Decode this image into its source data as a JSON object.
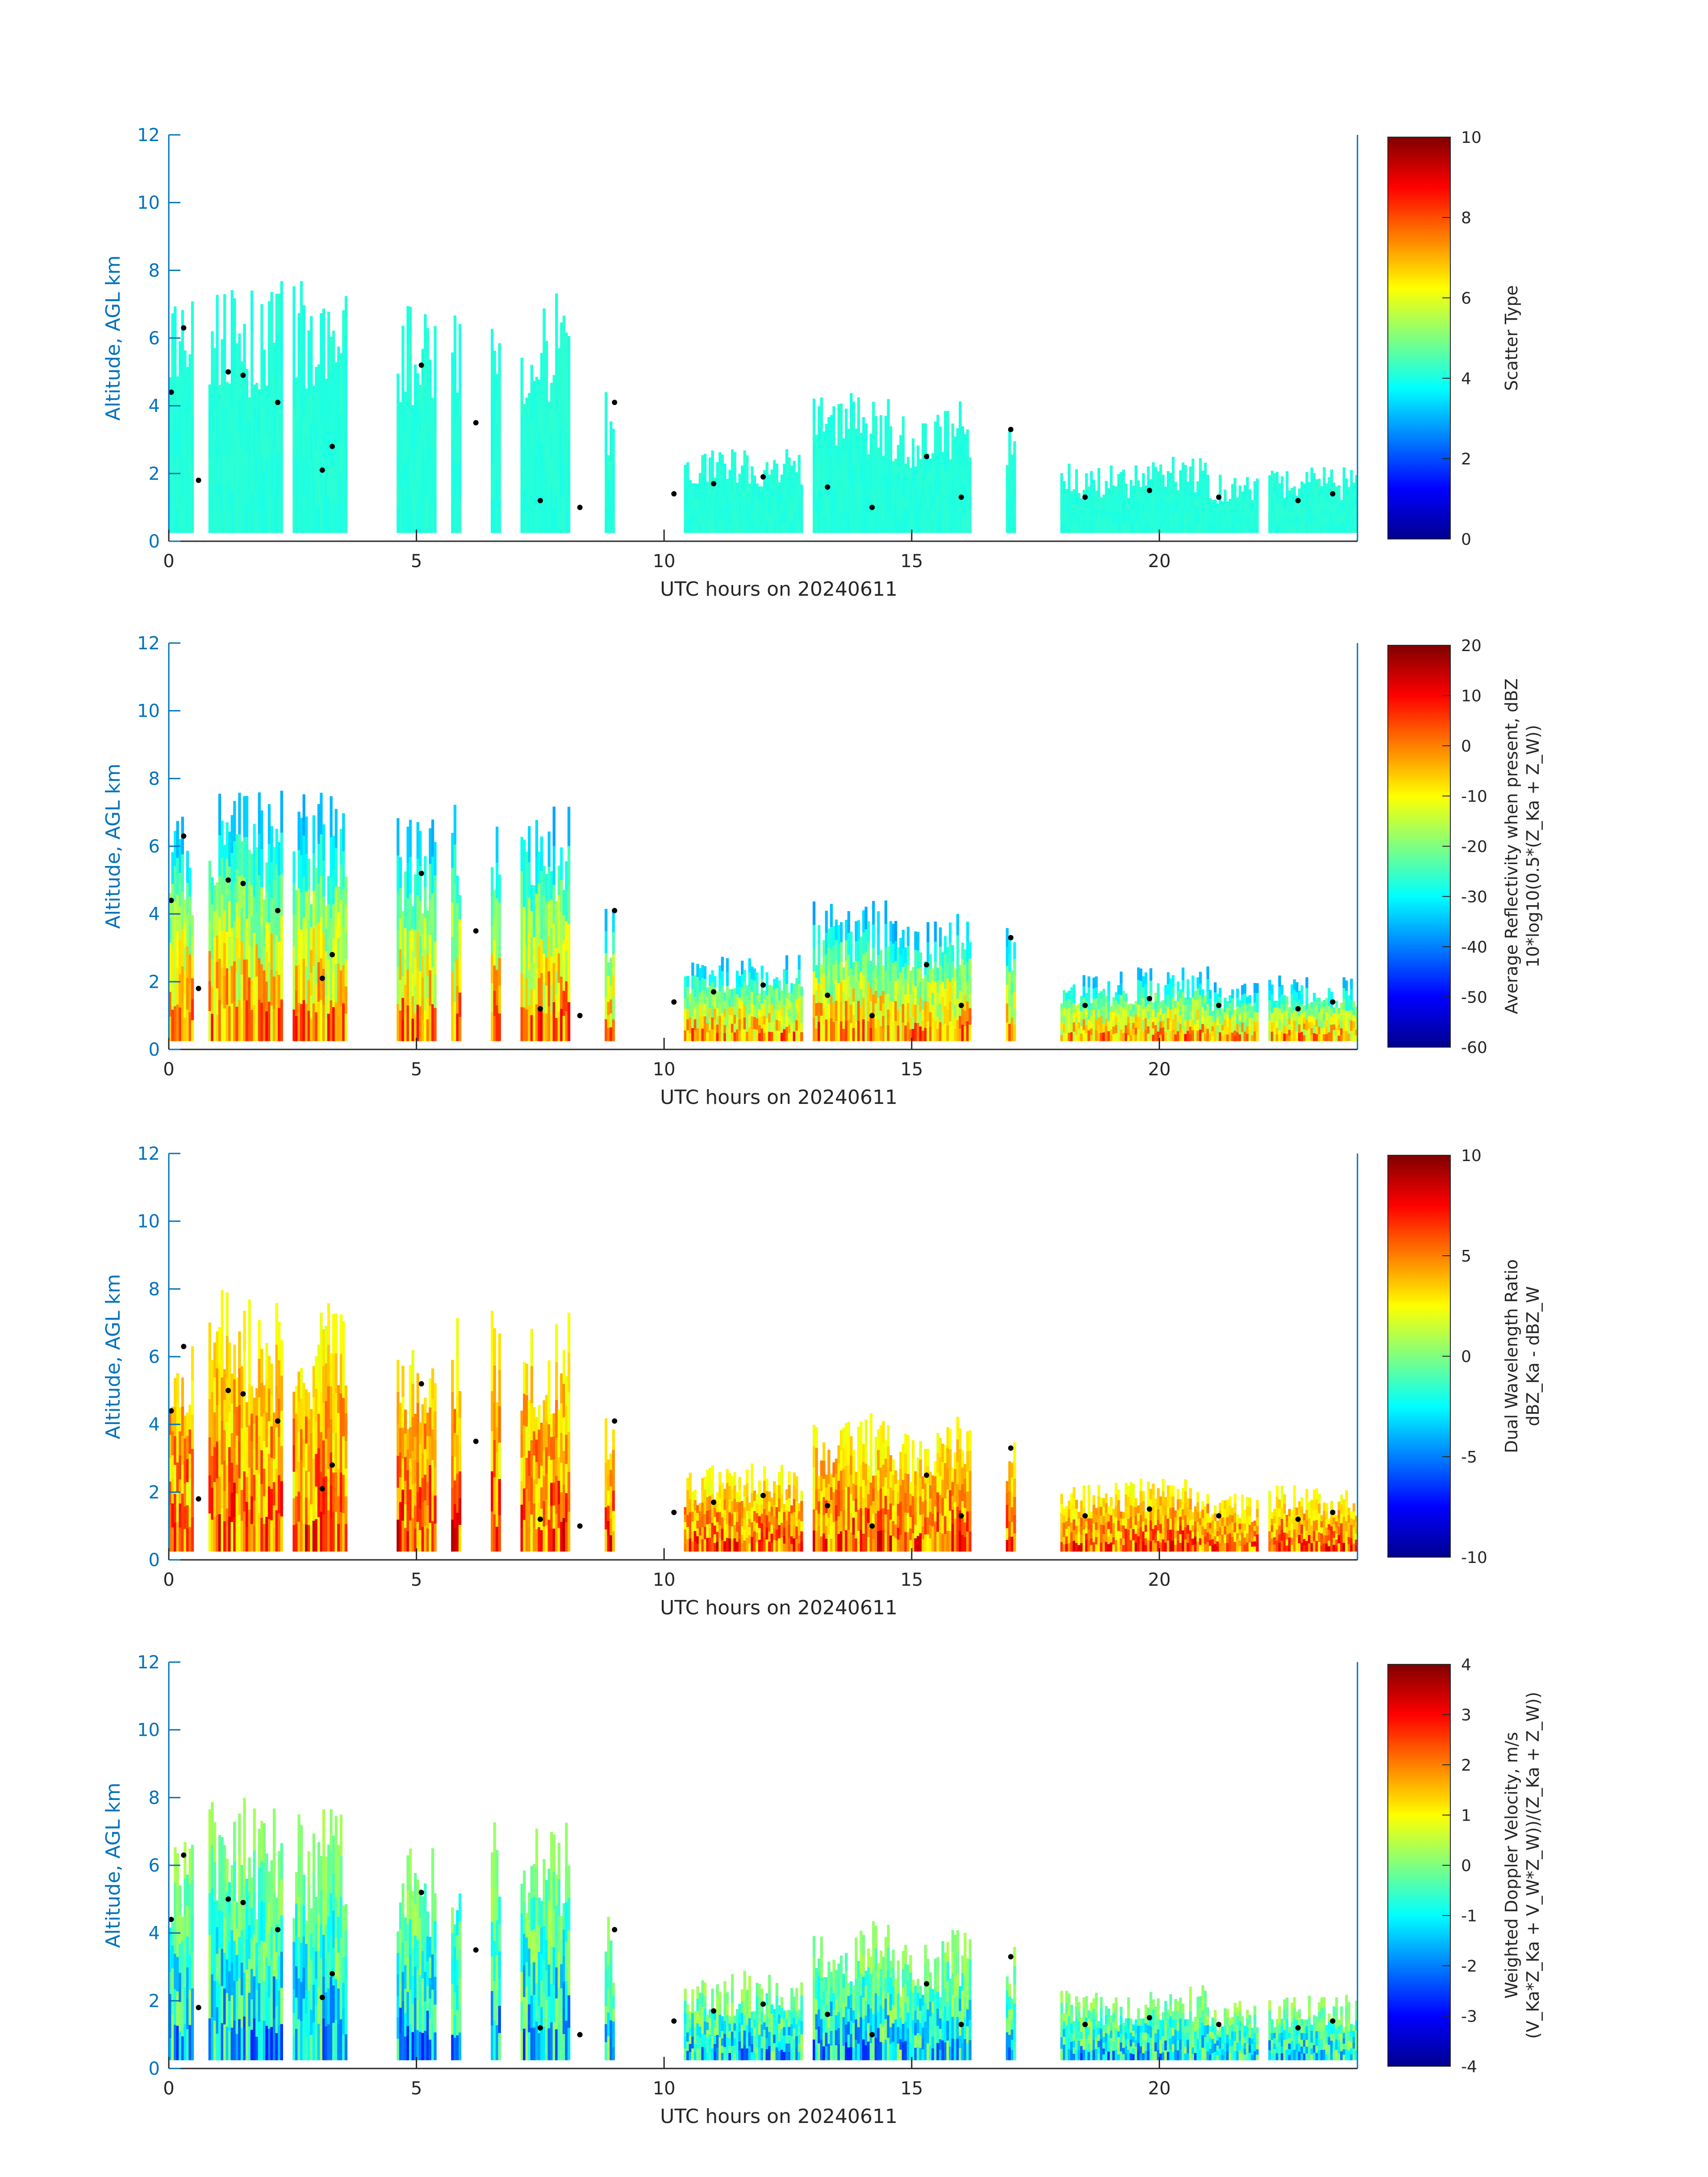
{
  "chart_data": [
    {
      "type": "heatmap",
      "title": "",
      "xlabel": "UTC hours on 20240611",
      "ylabel": "Altitude, AGL km",
      "xlim": [
        0,
        24
      ],
      "ylim": [
        0,
        12
      ],
      "xticks": [
        "0",
        "5",
        "10",
        "15",
        "20"
      ],
      "xtick_values": [
        0,
        5,
        10,
        15,
        20
      ],
      "yticks": [
        "0",
        "2",
        "4",
        "6",
        "8",
        "10",
        "12"
      ],
      "ytick_values": [
        0,
        2,
        4,
        6,
        8,
        10,
        12
      ],
      "colormap": "jet",
      "colorbar": {
        "label_lines": [
          "Scatter Type"
        ],
        "range": [
          0,
          10
        ],
        "ticks": [
          "0",
          "2",
          "4",
          "6",
          "8",
          "10"
        ],
        "tick_values": [
          0,
          2,
          4,
          6,
          8,
          10
        ]
      },
      "field": "scatter"
    },
    {
      "type": "heatmap",
      "title": "",
      "xlabel": "UTC hours on 20240611",
      "ylabel": "Altitude, AGL km",
      "xlim": [
        0,
        24
      ],
      "ylim": [
        0,
        12
      ],
      "xticks": [
        "0",
        "5",
        "10",
        "15",
        "20"
      ],
      "xtick_values": [
        0,
        5,
        10,
        15,
        20
      ],
      "yticks": [
        "0",
        "2",
        "4",
        "6",
        "8",
        "10",
        "12"
      ],
      "ytick_values": [
        0,
        2,
        4,
        6,
        8,
        10,
        12
      ],
      "colormap": "jet",
      "colorbar": {
        "label_lines": [
          "Average Reflectivity when present, dBZ",
          "10*log10(0.5*(Z_Ka + Z_W))"
        ],
        "range": [
          -60,
          20
        ],
        "ticks": [
          "-60",
          "-50",
          "-40",
          "-30",
          "-20",
          "-10",
          "0",
          "10",
          "20"
        ],
        "tick_values": [
          -60,
          -50,
          -40,
          -30,
          -20,
          -10,
          0,
          10,
          20
        ]
      },
      "field": "reflectivity"
    },
    {
      "type": "heatmap",
      "title": "",
      "xlabel": "UTC hours on 20240611",
      "ylabel": "Altitude, AGL km",
      "xlim": [
        0,
        24
      ],
      "ylim": [
        0,
        12
      ],
      "xticks": [
        "0",
        "5",
        "10",
        "15",
        "20"
      ],
      "xtick_values": [
        0,
        5,
        10,
        15,
        20
      ],
      "yticks": [
        "0",
        "2",
        "4",
        "6",
        "8",
        "10",
        "12"
      ],
      "ytick_values": [
        0,
        2,
        4,
        6,
        8,
        10,
        12
      ],
      "colormap": "jet",
      "colorbar": {
        "label_lines": [
          "Dual Wavelength Ratio",
          "dBZ_Ka - dBZ_W"
        ],
        "range": [
          -10,
          10
        ],
        "ticks": [
          "-10",
          "-5",
          "0",
          "5",
          "10"
        ],
        "tick_values": [
          -10,
          -5,
          0,
          5,
          10
        ]
      },
      "field": "dwr"
    },
    {
      "type": "heatmap",
      "title": "",
      "xlabel": "UTC hours on 20240611",
      "ylabel": "Altitude, AGL km",
      "xlim": [
        0,
        24
      ],
      "ylim": [
        0,
        12
      ],
      "xticks": [
        "0",
        "5",
        "10",
        "15",
        "20"
      ],
      "xtick_values": [
        0,
        5,
        10,
        15,
        20
      ],
      "yticks": [
        "0",
        "2",
        "4",
        "6",
        "8",
        "10",
        "12"
      ],
      "ytick_values": [
        0,
        2,
        4,
        6,
        8,
        10,
        12
      ],
      "colormap": "jet",
      "colorbar": {
        "label_lines": [
          "Weighted Doppler Velocity, m/s",
          "(V_Ka*Z_Ka + V_W*Z_W))/(Z_Ka + Z_W))"
        ],
        "range": [
          -4,
          4
        ],
        "ticks": [
          "-4",
          "-3",
          "-2",
          "-1",
          "0",
          "1",
          "2",
          "3",
          "4"
        ],
        "tick_values": [
          -4,
          -3,
          -2,
          -1,
          0,
          1,
          2,
          3,
          4
        ]
      },
      "field": "velocity"
    }
  ],
  "cloud_columns": [
    {
      "t0": 0.0,
      "t1": 0.5,
      "top": 7.2
    },
    {
      "t0": 0.8,
      "t1": 1.6,
      "top": 8.0
    },
    {
      "t0": 1.6,
      "t1": 2.3,
      "top": 7.7
    },
    {
      "t0": 2.5,
      "t1": 3.6,
      "top": 7.7
    },
    {
      "t0": 4.6,
      "t1": 5.4,
      "top": 7.0
    },
    {
      "t0": 5.7,
      "t1": 5.9,
      "top": 7.5
    },
    {
      "t0": 6.5,
      "t1": 6.7,
      "top": 7.4
    },
    {
      "t0": 7.1,
      "t1": 7.8,
      "top": 7.2
    },
    {
      "t0": 7.8,
      "t1": 8.1,
      "top": 7.6
    },
    {
      "t0": 8.8,
      "t1": 9.0,
      "top": 4.5
    },
    {
      "t0": 10.4,
      "t1": 11.6,
      "top": 2.8
    },
    {
      "t0": 11.6,
      "t1": 12.8,
      "top": 2.9
    },
    {
      "t0": 13.0,
      "t1": 14.6,
      "top": 4.4
    },
    {
      "t0": 14.6,
      "t1": 15.6,
      "top": 3.8
    },
    {
      "t0": 15.6,
      "t1": 16.2,
      "top": 4.3
    },
    {
      "t0": 16.9,
      "t1": 17.1,
      "top": 3.7
    },
    {
      "t0": 18.0,
      "t1": 19.5,
      "top": 2.3
    },
    {
      "t0": 19.5,
      "t1": 21.0,
      "top": 2.5
    },
    {
      "t0": 21.0,
      "t1": 22.0,
      "top": 2.0
    },
    {
      "t0": 22.2,
      "t1": 24.0,
      "top": 2.2
    }
  ],
  "cloud_base_points": [
    {
      "t": 0.05,
      "h": 4.4
    },
    {
      "t": 0.3,
      "h": 6.3
    },
    {
      "t": 0.6,
      "h": 1.8
    },
    {
      "t": 1.2,
      "h": 5.0
    },
    {
      "t": 1.5,
      "h": 4.9
    },
    {
      "t": 2.2,
      "h": 4.1
    },
    {
      "t": 3.1,
      "h": 2.1
    },
    {
      "t": 3.3,
      "h": 2.8
    },
    {
      "t": 5.1,
      "h": 5.2
    },
    {
      "t": 6.2,
      "h": 3.5
    },
    {
      "t": 7.5,
      "h": 1.2
    },
    {
      "t": 8.3,
      "h": 1.0
    },
    {
      "t": 9.0,
      "h": 4.1
    },
    {
      "t": 10.2,
      "h": 1.4
    },
    {
      "t": 11.0,
      "h": 1.7
    },
    {
      "t": 12.0,
      "h": 1.9
    },
    {
      "t": 13.3,
      "h": 1.6
    },
    {
      "t": 14.2,
      "h": 1.0
    },
    {
      "t": 15.3,
      "h": 2.5
    },
    {
      "t": 16.0,
      "h": 1.3
    },
    {
      "t": 17.0,
      "h": 3.3
    },
    {
      "t": 18.5,
      "h": 1.3
    },
    {
      "t": 19.8,
      "h": 1.5
    },
    {
      "t": 21.2,
      "h": 1.3
    },
    {
      "t": 22.8,
      "h": 1.2
    },
    {
      "t": 23.5,
      "h": 1.4
    }
  ]
}
